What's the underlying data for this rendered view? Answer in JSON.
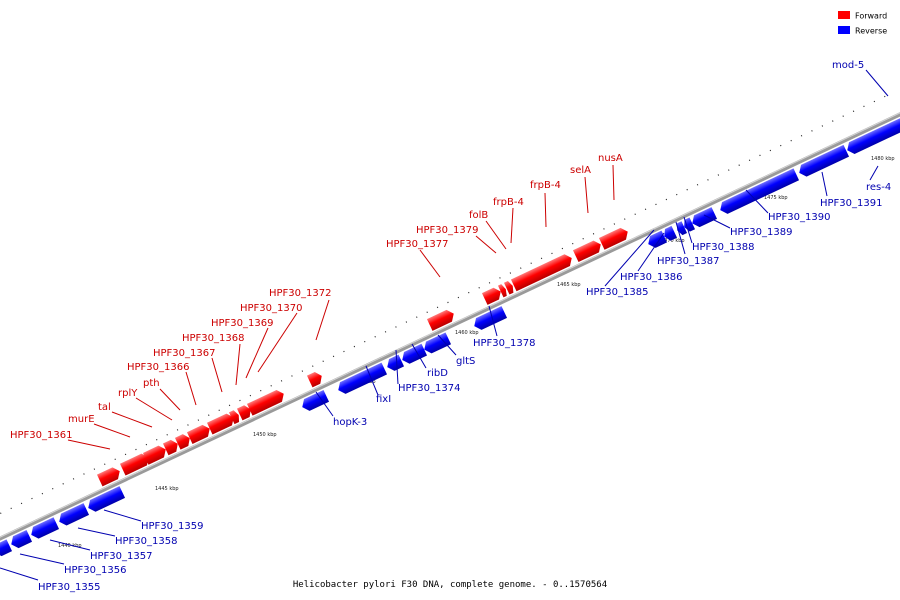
{
  "legend": {
    "forward": {
      "label": "Forward",
      "color": "#ff0000"
    },
    "reverse": {
      "label": "Reverse",
      "color": "#0000ff"
    }
  },
  "caption": "Helicobacter pylori F30 DNA, complete genome. - 0..1570564",
  "scale_labels": [
    "1440 kbp",
    "1445 kbp",
    "1450 kbp",
    "1455 kbp",
    "1460 kbp",
    "1465 kbp",
    "1470 kbp",
    "1475 kbp",
    "1480 kbp"
  ],
  "forward_genes": [
    "HPF30_1361",
    "murE",
    "tal",
    "rplY",
    "pth",
    "HPF30_1366",
    "HPF30_1367",
    "HPF30_1368",
    "HPF30_1369",
    "HPF30_1370",
    "HPF30_1372",
    "HPF30_1377",
    "HPF30_1379",
    "folB",
    "frpB-4",
    "frpB-4",
    "selA",
    "nusA"
  ],
  "reverse_genes": [
    "HPF30_1355",
    "HPF30_1356",
    "HPF30_1357",
    "HPF30_1358",
    "HPF30_1359",
    "hopK-3",
    "fixI",
    "HPF30_1374",
    "ribD",
    "gltS",
    "HPF30_1378",
    "HPF30_1385",
    "HPF30_1386",
    "HPF30_1387",
    "HPF30_1388",
    "HPF30_1389",
    "HPF30_1390",
    "HPF30_1391",
    "res-4",
    "mod-5"
  ]
}
